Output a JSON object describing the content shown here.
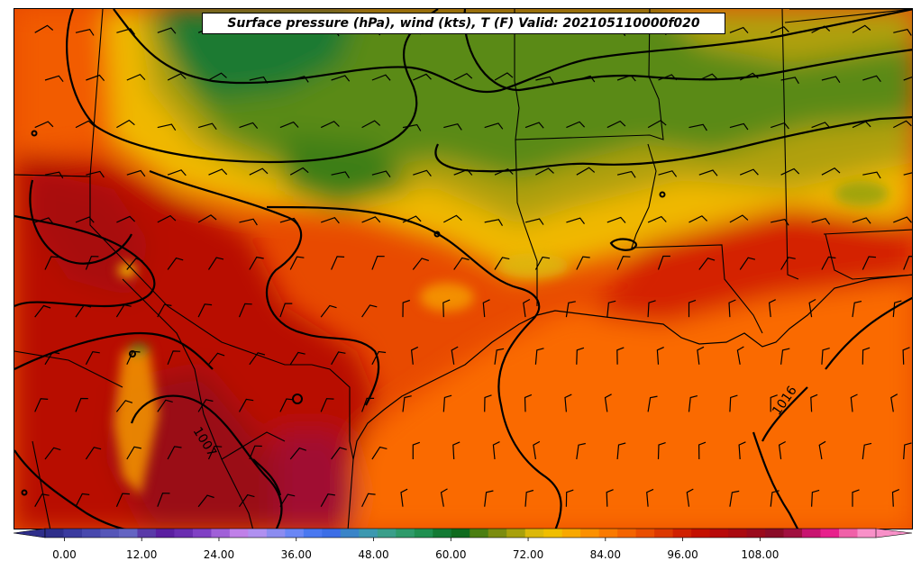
{
  "title": "Surface pressure (hPa), wind (kts), T (F) Valid: 202105110000f020",
  "contour_labels": [
    "1007",
    "1016"
  ],
  "colorbar": {
    "tick_labels": [
      "0.00",
      "12.00",
      "24.00",
      "36.00",
      "48.00",
      "60.00",
      "72.00",
      "84.00",
      "96.00",
      "108.00"
    ],
    "min": -3,
    "max": 126,
    "step": 3,
    "colors": [
      "#2e2e8a",
      "#3a3a9e",
      "#4848ad",
      "#5656b8",
      "#6464c2",
      "#5a3aa8",
      "#5b1fa0",
      "#6a2db0",
      "#8040c4",
      "#a060d8",
      "#c080e8",
      "#b090f0",
      "#8c8cf0",
      "#6a86f5",
      "#4a78f0",
      "#3c6ee6",
      "#3a84c8",
      "#3c98b0",
      "#3a9e8a",
      "#2e9a6a",
      "#1f8f50",
      "#137a34",
      "#0f6b1e",
      "#4a7e12",
      "#7c8c10",
      "#a8a00c",
      "#dcb80a",
      "#f0be00",
      "#f8a800",
      "#fc9000",
      "#fa7a00",
      "#f46400",
      "#ea4e00",
      "#dc3800",
      "#d02000",
      "#c41000",
      "#b80a0a",
      "#aa0a10",
      "#9a0a1c",
      "#8a0c28",
      "#a01040",
      "#c81470",
      "#e8208c",
      "#f060a8",
      "#f890c8"
    ],
    "extend_low_color": "#2e2e8a",
    "extend_high_color": "#f890c8"
  }
}
